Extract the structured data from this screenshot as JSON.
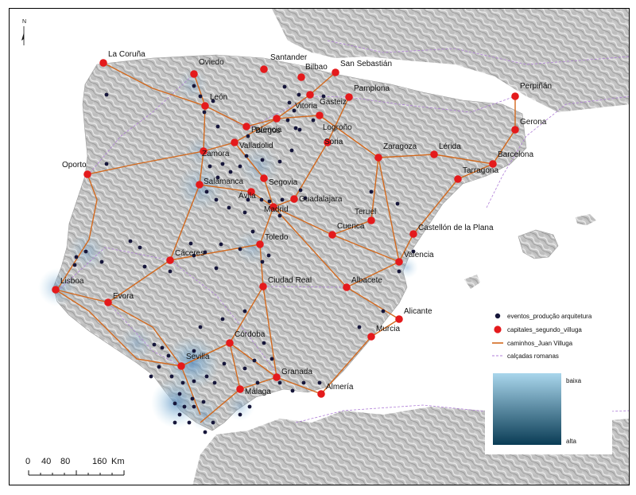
{
  "map": {
    "north_label": "N",
    "cities": [
      {
        "name": "La Coruña",
        "type": "capital"
      },
      {
        "name": "Oviedo",
        "type": "capital"
      },
      {
        "name": "Santander",
        "type": "capital"
      },
      {
        "name": "Bilbao",
        "type": "capital"
      },
      {
        "name": "San Sebastián",
        "type": "capital"
      },
      {
        "name": "Vitoria",
        "type": "capital"
      },
      {
        "name": "Gasteiz",
        "type": "label"
      },
      {
        "name": "Pamplona",
        "type": "capital"
      },
      {
        "name": "Perpiñán",
        "type": "capital"
      },
      {
        "name": "León",
        "type": "capital"
      },
      {
        "name": "Burgos",
        "type": "capital"
      },
      {
        "name": "Logroño",
        "type": "capital"
      },
      {
        "name": "Palencia",
        "type": "capital"
      },
      {
        "name": "Gerona",
        "type": "capital"
      },
      {
        "name": "Valladolid",
        "type": "capital"
      },
      {
        "name": "Soria",
        "type": "capital"
      },
      {
        "name": "Zamora",
        "type": "capital"
      },
      {
        "name": "Zaragoza",
        "type": "capital"
      },
      {
        "name": "Lérida",
        "type": "capital"
      },
      {
        "name": "Barcelona",
        "type": "capital"
      },
      {
        "name": "Oporto",
        "type": "capital"
      },
      {
        "name": "Tarragona",
        "type": "capital"
      },
      {
        "name": "Salamanca",
        "type": "capital"
      },
      {
        "name": "Segovia",
        "type": "capital"
      },
      {
        "name": "Ávila",
        "type": "capital"
      },
      {
        "name": "Guadalajara",
        "type": "capital"
      },
      {
        "name": "Madrid",
        "type": "capital"
      },
      {
        "name": "Teruel",
        "type": "capital"
      },
      {
        "name": "Cuenca",
        "type": "capital"
      },
      {
        "name": "Castellón de la Plana",
        "type": "capital"
      },
      {
        "name": "Toledo",
        "type": "capital"
      },
      {
        "name": "Cáceres",
        "type": "capital"
      },
      {
        "name": "Valencia",
        "type": "capital"
      },
      {
        "name": "Lisboa",
        "type": "capital"
      },
      {
        "name": "Ciudad Real",
        "type": "capital"
      },
      {
        "name": "Albacete",
        "type": "capital"
      },
      {
        "name": "Evora",
        "type": "capital"
      },
      {
        "name": "Alicante",
        "type": "capital"
      },
      {
        "name": "Murcia",
        "type": "capital"
      },
      {
        "name": "Córdoba",
        "type": "capital"
      },
      {
        "name": "Sevilla",
        "type": "capital"
      },
      {
        "name": "Granada",
        "type": "capital"
      },
      {
        "name": "Málaga",
        "type": "capital"
      },
      {
        "name": "Almería",
        "type": "capital"
      }
    ]
  },
  "legend": {
    "items": [
      {
        "label": "eventos_produção arquitetura",
        "symbol": "event",
        "color": "#16163a"
      },
      {
        "label": "capitales_segundo_villuga",
        "symbol": "capital",
        "color": "#e41a1c"
      },
      {
        "label": "caminhos_Juan Villuga",
        "symbol": "road",
        "color": "#d2691e"
      },
      {
        "label": "calçadas romanas",
        "symbol": "roman",
        "color": "#b07fd8"
      }
    ],
    "gradient_high_label": "baixa",
    "gradient_low_label": "alta",
    "gradient_colors": [
      "#a9d6ec",
      "#0a3c55"
    ]
  },
  "scale_bar": {
    "ticks": [
      "0",
      "40",
      "80",
      "160"
    ],
    "unit": "Km"
  },
  "colors": {
    "land": "#c4c4c4",
    "sea": "#ffffff",
    "density_light": "#a9d6ec",
    "density_dark": "#1f4f7a"
  }
}
